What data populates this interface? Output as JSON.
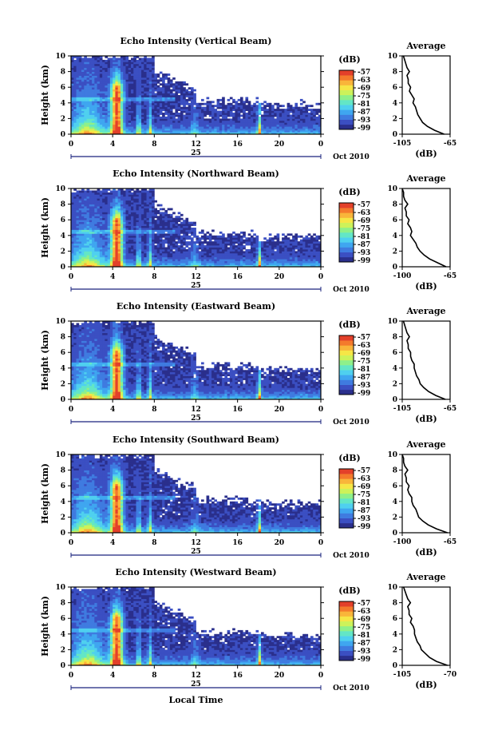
{
  "figure": {
    "date_label": "Oct 2010",
    "day_label": "25",
    "xlabel": "Local Time",
    "ylabel": "Height (km)",
    "colorbar_unit": "(dB)",
    "profile_title": "Average",
    "profile_xlabel": "(dB)",
    "colorbar_ticks": [
      "-57",
      "-63",
      "-69",
      "-75",
      "-81",
      "-87",
      "-93",
      "-99"
    ],
    "x_ticks": [
      "0",
      "4",
      "8",
      "12",
      "16",
      "20",
      "0"
    ],
    "y_ticks": [
      "0",
      "2",
      "4",
      "6",
      "8",
      "10"
    ],
    "colormap": [
      "#2a2f8c",
      "#3b4fc2",
      "#3f7be0",
      "#3fa6f0",
      "#4fd0ef",
      "#63e6c6",
      "#8ef08a",
      "#cdf25a",
      "#f6e646",
      "#f9b53a",
      "#f47a2c",
      "#e3402a"
    ]
  },
  "chart_data": [
    {
      "type": "heatmap",
      "title": "Echo Intensity (Vertical Beam)",
      "xlabel": "Local Time",
      "ylabel": "Height (km)",
      "xlim": [
        0,
        24
      ],
      "ylim": [
        0,
        10
      ],
      "clim": [
        -99,
        -57
      ],
      "profile": {
        "title": "Average",
        "xlabel": "(dB)",
        "xlim": [
          -105,
          -65
        ],
        "xtick_labels": [
          "-105",
          "-65"
        ],
        "heights": [
          0,
          0.5,
          1,
          1.5,
          2,
          2.5,
          3,
          3.5,
          4,
          4.5,
          5,
          5.5,
          6,
          6.5,
          7,
          7.5,
          8,
          8.5,
          9,
          9.5,
          10
        ],
        "values": [
          -70,
          -78,
          -84,
          -88,
          -90,
          -92,
          -93,
          -94,
          -96,
          -95,
          -97,
          -99,
          -98,
          -100,
          -100,
          -101,
          -99,
          -101,
          -102,
          -103,
          -104
        ]
      }
    },
    {
      "type": "heatmap",
      "title": "Echo Intensity (Northward Beam)",
      "xlabel": "Local Time",
      "ylabel": "Height (km)",
      "xlim": [
        0,
        24
      ],
      "ylim": [
        0,
        10
      ],
      "clim": [
        -99,
        -57
      ],
      "profile": {
        "title": "Average",
        "xlabel": "(dB)",
        "xlim": [
          -100,
          -65
        ],
        "xtick_labels": [
          "-100",
          "-65"
        ],
        "heights": [
          0,
          0.5,
          1,
          1.5,
          2,
          2.5,
          3,
          3.5,
          4,
          4.5,
          5,
          5.5,
          6,
          6.5,
          7,
          7.5,
          8,
          8.5,
          9,
          9.5,
          10
        ],
        "values": [
          -68,
          -74,
          -80,
          -84,
          -87,
          -89,
          -90,
          -92,
          -94,
          -93,
          -94,
          -96,
          -95,
          -97,
          -97,
          -98,
          -96,
          -98,
          -99,
          -99,
          -100
        ]
      }
    },
    {
      "type": "heatmap",
      "title": "Echo Intensity (Eastward Beam)",
      "xlabel": "Local Time",
      "ylabel": "Height (km)",
      "xlim": [
        0,
        24
      ],
      "ylim": [
        0,
        10
      ],
      "clim": [
        -99,
        -57
      ],
      "profile": {
        "title": "Average",
        "xlabel": "(dB)",
        "xlim": [
          -105,
          -65
        ],
        "xtick_labels": [
          "-105",
          "-65"
        ],
        "heights": [
          0,
          0.5,
          1,
          1.5,
          2,
          2.5,
          3,
          3.5,
          4,
          4.5,
          5,
          5.5,
          6,
          6.5,
          7,
          7.5,
          8,
          8.5,
          9,
          9.5,
          10
        ],
        "values": [
          -69,
          -77,
          -83,
          -87,
          -90,
          -91,
          -93,
          -94,
          -95,
          -95,
          -97,
          -98,
          -98,
          -100,
          -100,
          -101,
          -99,
          -101,
          -102,
          -103,
          -104
        ]
      }
    },
    {
      "type": "heatmap",
      "title": "Echo Intensity (Southward Beam)",
      "xlabel": "Local Time",
      "ylabel": "Height (km)",
      "xlim": [
        0,
        24
      ],
      "ylim": [
        0,
        10
      ],
      "clim": [
        -99,
        -57
      ],
      "profile": {
        "title": "Average",
        "xlabel": "(dB)",
        "xlim": [
          -100,
          -65
        ],
        "xtick_labels": [
          "-100",
          "-65"
        ],
        "heights": [
          0,
          0.5,
          1,
          1.5,
          2,
          2.5,
          3,
          3.5,
          4,
          4.5,
          5,
          5.5,
          6,
          6.5,
          7,
          7.5,
          8,
          8.5,
          9,
          9.5,
          10
        ],
        "values": [
          -67,
          -75,
          -81,
          -85,
          -88,
          -89,
          -90,
          -92,
          -93,
          -93,
          -95,
          -96,
          -95,
          -97,
          -97,
          -98,
          -96,
          -98,
          -99,
          -99,
          -100
        ]
      }
    },
    {
      "type": "heatmap",
      "title": "Echo Intensity (Westward Beam)",
      "xlabel": "Local Time",
      "ylabel": "Height (km)",
      "xlim": [
        0,
        24
      ],
      "ylim": [
        0,
        10
      ],
      "clim": [
        -99,
        -57
      ],
      "profile": {
        "title": "Average",
        "xlabel": "(dB)",
        "xlim": [
          -105,
          -70
        ],
        "xtick_labels": [
          "-105",
          "-70"
        ],
        "heights": [
          0,
          0.5,
          1,
          1.5,
          2,
          2.5,
          3,
          3.5,
          4,
          4.5,
          5,
          5.5,
          6,
          6.5,
          7,
          7.5,
          8,
          8.5,
          9,
          9.5,
          10
        ],
        "values": [
          -72,
          -80,
          -85,
          -88,
          -91,
          -92,
          -94,
          -95,
          -96,
          -96,
          -97,
          -99,
          -98,
          -100,
          -100,
          -101,
          -99,
          -101,
          -102,
          -103,
          -104
        ]
      }
    }
  ]
}
